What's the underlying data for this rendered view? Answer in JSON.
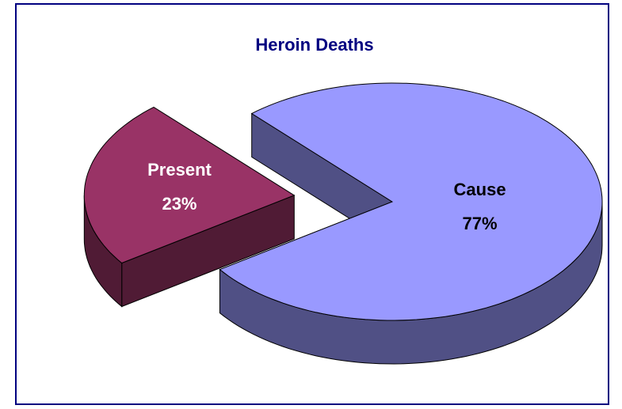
{
  "chart_data": {
    "type": "pie",
    "title": "Heroin Deaths",
    "categories": [
      "Cause",
      "Present"
    ],
    "values": [
      77,
      23
    ],
    "value_labels": [
      "77%",
      "23%"
    ],
    "colors": [
      "#9999ff",
      "#993366"
    ]
  }
}
